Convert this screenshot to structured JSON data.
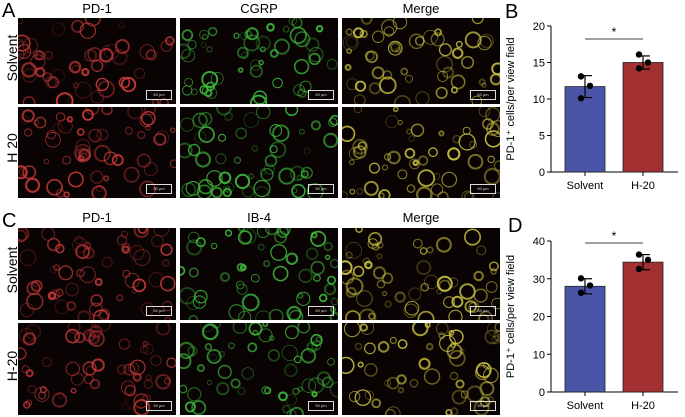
{
  "panels": {
    "A": {
      "letter": "A",
      "columns": [
        "PD-1",
        "CGRP",
        "Merge"
      ],
      "rows": [
        "Solvent",
        "H 20"
      ],
      "scalebar": "50 μm"
    },
    "C": {
      "letter": "C",
      "columns": [
        "PD-1",
        "IB-4",
        "Merge"
      ],
      "rows": [
        "Solvent",
        "H-20"
      ],
      "scalebar": "50 μm"
    },
    "B": {
      "letter": "B"
    },
    "D": {
      "letter": "D"
    }
  },
  "colors": {
    "solvent_bar": "#4a55a8",
    "h20_bar": "#a33030",
    "pd1_stain": "#c83a3a",
    "green_stain": "#3fbf3f",
    "merge_stain": "#c8c040"
  },
  "chart_data": [
    {
      "type": "bar",
      "panel": "B",
      "categories": [
        "Solvent",
        "H-20"
      ],
      "values": [
        11.7,
        15.0
      ],
      "errors": [
        1.5,
        0.9
      ],
      "points": [
        [
          13.1,
          11.8,
          10.1
        ],
        [
          16.1,
          15.0,
          14.2
        ]
      ],
      "ylabel": "PD-1⁺ cells/per view field",
      "ylim": [
        0,
        20
      ],
      "yticks": [
        0,
        5,
        10,
        15,
        20
      ],
      "significance": "*"
    },
    {
      "type": "bar",
      "panel": "D",
      "categories": [
        "Solvent",
        "H-20"
      ],
      "values": [
        28.0,
        34.4
      ],
      "errors": [
        2.0,
        2.0
      ],
      "points": [
        [
          30.1,
          28.2,
          26.3
        ],
        [
          36.4,
          35.0,
          32.6
        ]
      ],
      "ylabel": "PD-1⁺ cells/per view field",
      "ylim": [
        0,
        40
      ],
      "yticks": [
        0,
        10,
        20,
        30,
        40
      ],
      "significance": "*"
    }
  ]
}
